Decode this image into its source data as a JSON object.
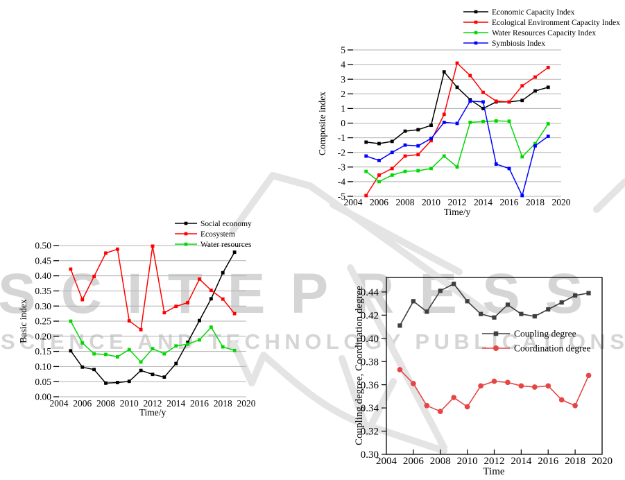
{
  "watermark": {
    "line1": "SCITEPRESS",
    "line2": "SCIENCE AND TECHNOLOGY PUBLICATIONS",
    "color": "#d5d5d5"
  },
  "chart_data": [
    {
      "id": "composite",
      "type": "line",
      "title": "",
      "xlabel": "Time/y",
      "ylabel": "Composite index",
      "x": [
        2005,
        2006,
        2007,
        2008,
        2009,
        2010,
        2011,
        2012,
        2013,
        2014,
        2015,
        2016,
        2017,
        2018,
        2019
      ],
      "x_axis": {
        "min": 2004,
        "max": 2020,
        "tick_step": 2
      },
      "y_axis": {
        "min": -5,
        "max": 5,
        "tick_max": 5,
        "tick_step": 1,
        "decimals": 0
      },
      "grid": "horizontal",
      "legend_position": "above-right",
      "series": [
        {
          "name": "Economic Capacity Index",
          "color": "#000000",
          "marker": "square",
          "values": [
            -1.3,
            -1.4,
            -1.25,
            -0.55,
            -0.45,
            -0.15,
            3.5,
            2.45,
            1.6,
            1.0,
            1.45,
            1.45,
            1.55,
            2.2,
            2.45
          ]
        },
        {
          "name": "Ecological Environment Capacity Index",
          "color": "#ff0000",
          "marker": "square",
          "values": [
            -4.95,
            -3.55,
            -3.1,
            -2.25,
            -2.15,
            -1.2,
            0.6,
            4.1,
            3.25,
            2.1,
            1.5,
            1.45,
            2.55,
            3.15,
            3.8
          ]
        },
        {
          "name": "Water Resources Capacity Index",
          "color": "#00d900",
          "marker": "square",
          "values": [
            -3.3,
            -4.0,
            -3.55,
            -3.3,
            -3.25,
            -3.1,
            -2.25,
            -3.0,
            0.05,
            0.1,
            0.15,
            0.13,
            -2.3,
            -1.4,
            -0.05
          ]
        },
        {
          "name": "Symbiosis Index",
          "color": "#0000ff",
          "marker": "square",
          "values": [
            -2.25,
            -2.55,
            -2.0,
            -1.5,
            -1.55,
            -1.05,
            0.05,
            -0.02,
            1.5,
            1.45,
            -2.8,
            -3.1,
            -4.95,
            -1.55,
            -0.9
          ]
        }
      ]
    },
    {
      "id": "basic",
      "type": "line",
      "title": "",
      "xlabel": "Time/y",
      "ylabel": "Basic index",
      "x": [
        2005,
        2006,
        2007,
        2008,
        2009,
        2010,
        2011,
        2012,
        2013,
        2014,
        2015,
        2016,
        2017,
        2018,
        2019
      ],
      "x_axis": {
        "min": 2004,
        "max": 2020,
        "tick_step": 2
      },
      "y_axis": {
        "min": 0,
        "max": 0.5,
        "tick_max": 0.5,
        "tick_step": 0.05,
        "decimals": 2
      },
      "grid": "horizontal",
      "legend_position": "above-right",
      "series": [
        {
          "name": "Social economy",
          "color": "#000000",
          "marker": "square",
          "values": [
            0.152,
            0.098,
            0.09,
            0.045,
            0.047,
            0.051,
            0.087,
            0.074,
            0.065,
            0.11,
            0.18,
            0.252,
            0.324,
            0.41,
            0.478
          ]
        },
        {
          "name": "Ecosystem",
          "color": "#ff0000",
          "marker": "square",
          "values": [
            0.422,
            0.321,
            0.398,
            0.475,
            0.488,
            0.251,
            0.222,
            0.498,
            0.278,
            0.299,
            0.311,
            0.389,
            0.352,
            0.323,
            0.275
          ]
        },
        {
          "name": "Water resources",
          "color": "#00d900",
          "marker": "square",
          "values": [
            0.25,
            0.178,
            0.142,
            0.14,
            0.132,
            0.156,
            0.115,
            0.159,
            0.142,
            0.168,
            0.174,
            0.188,
            0.23,
            0.165,
            0.153
          ]
        }
      ]
    },
    {
      "id": "coupling",
      "type": "line",
      "title": "",
      "xlabel": "Time",
      "ylabel": "Coupling degree, Coordination degree",
      "x": [
        2005,
        2006,
        2007,
        2008,
        2009,
        2010,
        2011,
        2012,
        2013,
        2014,
        2015,
        2016,
        2017,
        2018,
        2019
      ],
      "x_axis": {
        "min": 2004,
        "max": 2020,
        "tick_step": 2
      },
      "y_axis": {
        "min": 0.3,
        "max": 0.4525,
        "tick_max": 0.44,
        "tick_step": 0.02,
        "decimals": 2
      },
      "grid": "none",
      "frame": true,
      "legend_position": "inside-right",
      "series": [
        {
          "name": "Coupling degree",
          "color": "#3f3f3f",
          "marker": "square",
          "values": [
            0.411,
            0.432,
            0.423,
            0.441,
            0.447,
            0.432,
            0.421,
            0.418,
            0.429,
            0.421,
            0.419,
            0.425,
            0.431,
            0.437,
            0.439
          ]
        },
        {
          "name": "Coordination degree",
          "color": "#e64545",
          "marker": "circle",
          "values": [
            0.373,
            0.361,
            0.342,
            0.337,
            0.349,
            0.341,
            0.359,
            0.363,
            0.362,
            0.359,
            0.358,
            0.359,
            0.347,
            0.342,
            0.368
          ]
        }
      ]
    }
  ]
}
